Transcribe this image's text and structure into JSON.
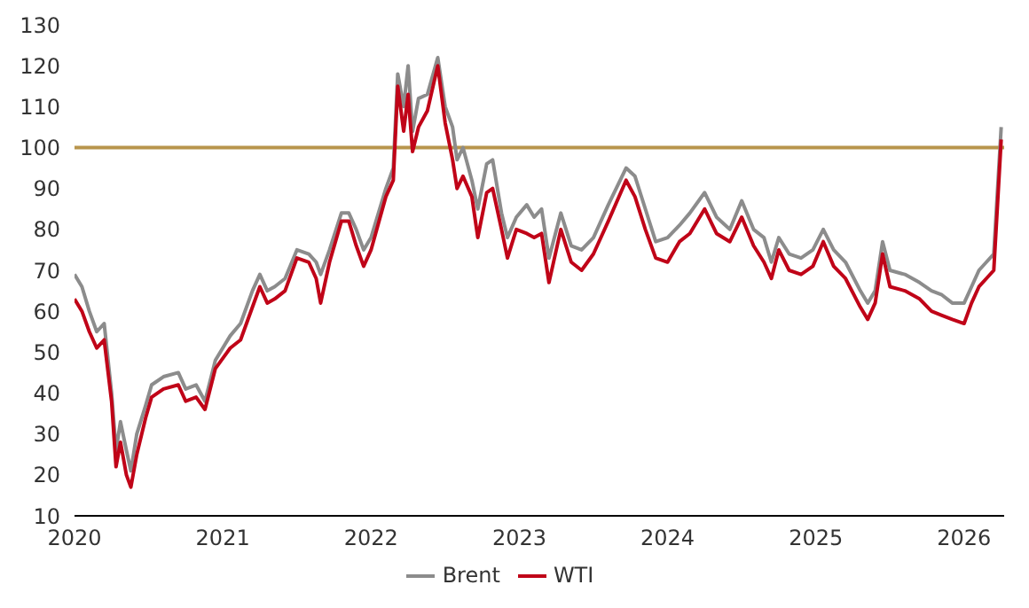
{
  "chart_data": {
    "type": "line",
    "x": [
      2020.0,
      2020.05,
      2020.1,
      2020.15,
      2020.2,
      2020.25,
      2020.28,
      2020.31,
      2020.35,
      2020.38,
      2020.42,
      2020.48,
      2020.52,
      2020.6,
      2020.7,
      2020.75,
      2020.82,
      2020.88,
      2020.95,
      2021.05,
      2021.12,
      2021.2,
      2021.25,
      2021.3,
      2021.35,
      2021.42,
      2021.5,
      2021.58,
      2021.63,
      2021.66,
      2021.72,
      2021.8,
      2021.85,
      2021.9,
      2021.95,
      2022.0,
      2022.1,
      2022.15,
      2022.18,
      2022.22,
      2022.25,
      2022.28,
      2022.32,
      2022.38,
      2022.45,
      2022.5,
      2022.55,
      2022.58,
      2022.62,
      2022.68,
      2022.72,
      2022.78,
      2022.82,
      2022.88,
      2022.92,
      2022.98,
      2023.05,
      2023.1,
      2023.15,
      2023.2,
      2023.28,
      2023.35,
      2023.42,
      2023.5,
      2023.6,
      2023.72,
      2023.78,
      2023.85,
      2023.92,
      2024.0,
      2024.08,
      2024.15,
      2024.25,
      2024.33,
      2024.42,
      2024.5,
      2024.58,
      2024.65,
      2024.7,
      2024.75,
      2024.82,
      2024.9,
      2024.98,
      2025.05,
      2025.12,
      2025.2,
      2025.3,
      2025.35,
      2025.4,
      2025.45,
      2025.5,
      2025.6,
      2025.7,
      2025.78,
      2025.85,
      2025.92,
      2026.0,
      2026.05,
      2026.1,
      2026.15,
      2026.2,
      2026.25
    ],
    "series": [
      {
        "name": "Brent",
        "color": "#8c8c8c",
        "values": [
          69,
          66,
          60,
          55,
          57,
          40,
          26,
          33,
          26,
          21,
          30,
          37,
          42,
          44,
          45,
          41,
          42,
          38,
          48,
          54,
          57,
          65,
          69,
          65,
          66,
          68,
          75,
          74,
          72,
          69,
          75,
          84,
          84,
          80,
          75,
          78,
          90,
          95,
          118,
          110,
          120,
          104,
          112,
          113,
          122,
          110,
          105,
          97,
          100,
          92,
          85,
          96,
          97,
          84,
          78,
          83,
          86,
          83,
          85,
          73,
          84,
          76,
          75,
          78,
          86,
          95,
          93,
          85,
          77,
          78,
          81,
          84,
          89,
          83,
          80,
          87,
          80,
          78,
          72,
          78,
          74,
          73,
          75,
          80,
          75,
          72,
          65,
          62,
          65,
          77,
          70,
          69,
          67,
          65,
          64,
          62,
          62,
          66,
          70,
          72,
          74,
          105
        ]
      },
      {
        "name": "WTI",
        "color": "#c00418",
        "values": [
          63,
          60,
          55,
          51,
          53,
          38,
          22,
          28,
          20,
          17,
          25,
          34,
          39,
          41,
          42,
          38,
          39,
          36,
          46,
          51,
          53,
          61,
          66,
          62,
          63,
          65,
          73,
          72,
          68,
          62,
          72,
          82,
          82,
          76,
          71,
          75,
          88,
          92,
          115,
          104,
          113,
          99,
          105,
          109,
          120,
          106,
          97,
          90,
          93,
          88,
          78,
          89,
          90,
          80,
          73,
          80,
          79,
          78,
          79,
          67,
          80,
          72,
          70,
          74,
          82,
          92,
          88,
          80,
          73,
          72,
          77,
          79,
          85,
          79,
          77,
          83,
          76,
          72,
          68,
          75,
          70,
          69,
          71,
          77,
          71,
          68,
          61,
          58,
          62,
          74,
          66,
          65,
          63,
          60,
          59,
          58,
          57,
          62,
          66,
          68,
          70,
          102
        ]
      }
    ],
    "xlim": [
      2020,
      2026.27
    ],
    "xticks": [
      2020,
      2021,
      2022,
      2023,
      2024,
      2025,
      2026
    ],
    "ylim": [
      10,
      130
    ],
    "yticks": [
      10,
      20,
      30,
      40,
      50,
      60,
      70,
      80,
      90,
      100,
      110,
      120,
      130
    ],
    "ref_lines": [
      {
        "axis": "y",
        "value": 100,
        "color": "#b8954c"
      }
    ],
    "grid": false,
    "legend": "bottom",
    "marker": "none",
    "line_style": "solid"
  }
}
